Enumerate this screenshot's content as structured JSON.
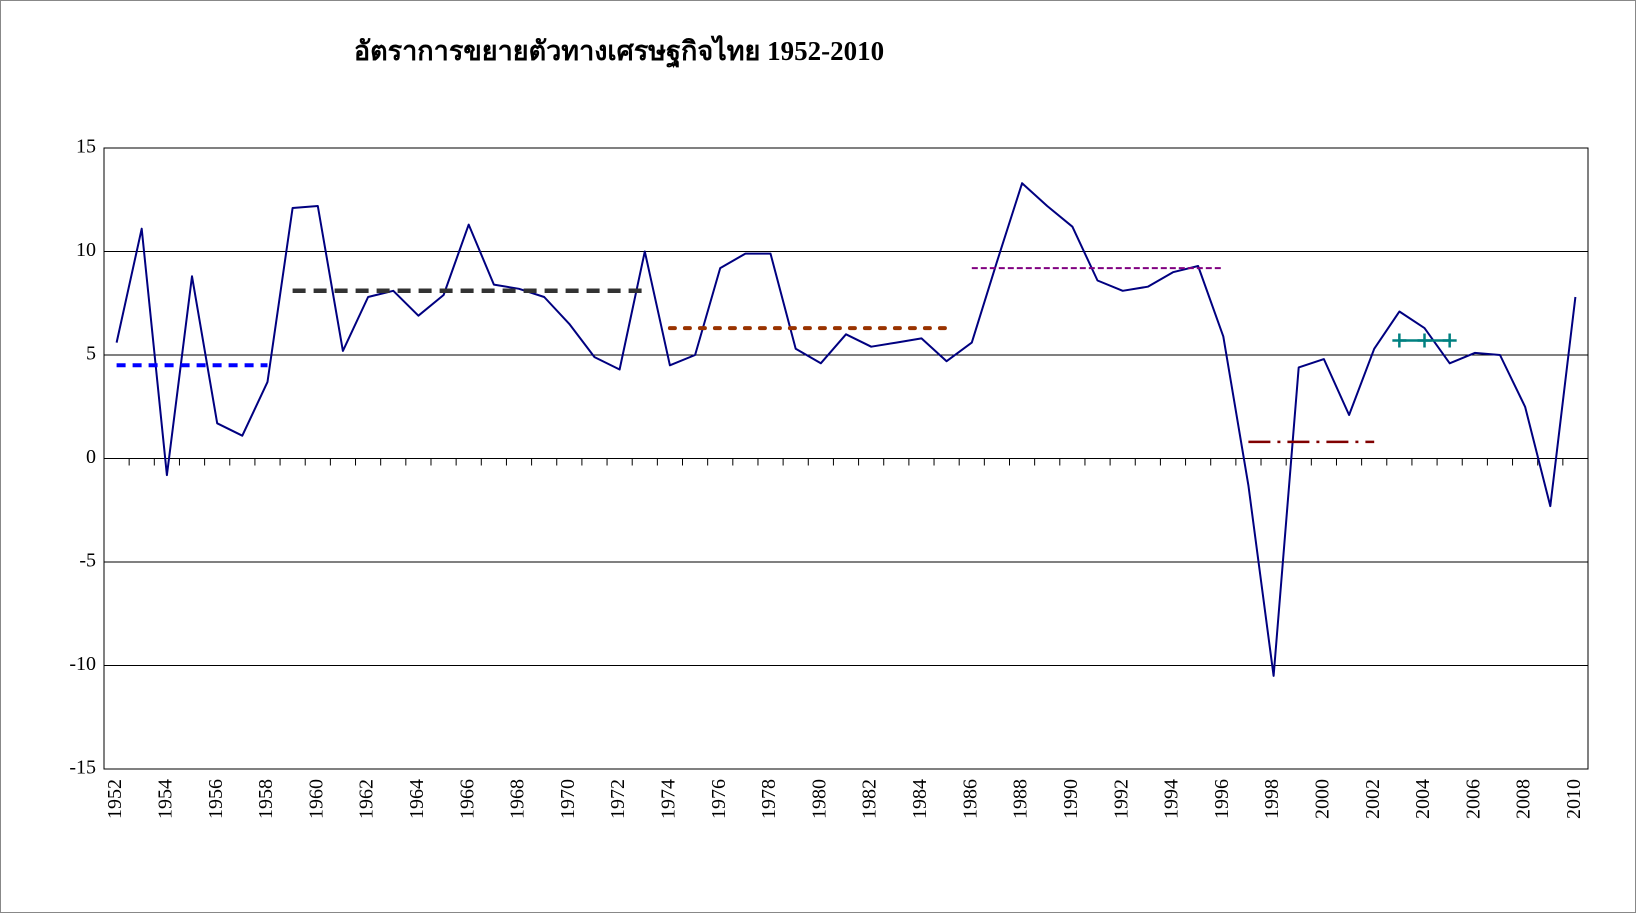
{
  "chart_data": {
    "type": "line",
    "title": "อัตราการขยายตัวทางเศรษฐกิจไทย 1952-2010",
    "categories": [
      "1952",
      null,
      "1954",
      null,
      "1956",
      null,
      "1958",
      null,
      "1960",
      null,
      "1962",
      null,
      "1964",
      null,
      "1966",
      null,
      "1968",
      null,
      "1970",
      null,
      "1972",
      null,
      "1974",
      null,
      "1976",
      null,
      "1978",
      null,
      "1980",
      null,
      "1982",
      null,
      "1984",
      null,
      "1986",
      null,
      "1988",
      null,
      "1990",
      null,
      "1992",
      null,
      "1994",
      null,
      "1996",
      null,
      "1998",
      null,
      "2000",
      null,
      "2002",
      null,
      "2004",
      null,
      "2006",
      null,
      "2008",
      null,
      "2010"
    ],
    "series": [
      {
        "color": "#000080",
        "values": [
          5.6,
          11.1,
          -0.8,
          8.8,
          1.7,
          1.1,
          3.7,
          12.1,
          12.2,
          5.2,
          7.8,
          8.1,
          6.9,
          7.9,
          11.3,
          8.4,
          8.2,
          7.8,
          6.5,
          4.9,
          4.3,
          10.0,
          4.5,
          5.0,
          9.2,
          9.9,
          9.9,
          5.3,
          4.6,
          6.0,
          5.4,
          5.6,
          5.8,
          4.7,
          5.6,
          9.5,
          13.3,
          12.2,
          11.2,
          8.6,
          8.1,
          8.3,
          9.0,
          9.3,
          5.9,
          -1.3,
          -10.5,
          4.4,
          4.8,
          2.1,
          5.3,
          7.1,
          6.3,
          4.6,
          5.1,
          5.0,
          2.5,
          -2.3,
          7.8
        ]
      },
      {
        "color": "#0000ff",
        "values": [
          4.5,
          4.5,
          4.5,
          4.5,
          4.5,
          4.5,
          4.5,
          null,
          null,
          null,
          null,
          null,
          null,
          null,
          null,
          null,
          null,
          null,
          null,
          null,
          null,
          null,
          null,
          null,
          null,
          null,
          null,
          null,
          null,
          null,
          null,
          null,
          null,
          null,
          null,
          null,
          null,
          null,
          null,
          null,
          null,
          null,
          null,
          null,
          null,
          null,
          null,
          null,
          null,
          null,
          null,
          null,
          null,
          null,
          null,
          null,
          null,
          null,
          null
        ]
      },
      {
        "color": "#333333",
        "values": [
          null,
          null,
          null,
          null,
          null,
          null,
          null,
          8.1,
          8.1,
          8.1,
          8.1,
          8.1,
          8.1,
          8.1,
          8.1,
          8.1,
          8.1,
          8.1,
          8.1,
          8.1,
          8.1,
          8.1,
          null,
          null,
          null,
          null,
          null,
          null,
          null,
          null,
          null,
          null,
          null,
          null,
          null,
          null,
          null,
          null,
          null,
          null,
          null,
          null,
          null,
          null,
          null,
          null,
          null,
          null,
          null,
          null,
          null,
          null,
          null,
          null,
          null,
          null,
          null,
          null,
          null
        ]
      },
      {
        "color": "#993300",
        "values": [
          null,
          null,
          null,
          null,
          null,
          null,
          null,
          null,
          null,
          null,
          null,
          null,
          null,
          null,
          null,
          null,
          null,
          null,
          null,
          null,
          null,
          null,
          6.3,
          6.3,
          6.3,
          6.3,
          6.3,
          6.3,
          6.3,
          6.3,
          6.3,
          6.3,
          6.3,
          6.3,
          null,
          null,
          null,
          null,
          null,
          null,
          null,
          null,
          null,
          null,
          null,
          null,
          null,
          null,
          null,
          null,
          null,
          null,
          null,
          null,
          null,
          null,
          null,
          null,
          null
        ]
      },
      {
        "color": "#800080",
        "values": [
          null,
          null,
          null,
          null,
          null,
          null,
          null,
          null,
          null,
          null,
          null,
          null,
          null,
          null,
          null,
          null,
          null,
          null,
          null,
          null,
          null,
          null,
          null,
          null,
          null,
          null,
          null,
          null,
          null,
          null,
          null,
          null,
          null,
          null,
          9.2,
          9.2,
          9.2,
          9.2,
          9.2,
          9.2,
          9.2,
          9.2,
          9.2,
          9.2,
          9.2,
          null,
          null,
          null,
          null,
          null,
          null,
          null,
          null,
          null,
          null,
          null,
          null,
          null,
          null
        ]
      },
      {
        "color": "#800000",
        "values": [
          null,
          null,
          null,
          null,
          null,
          null,
          null,
          null,
          null,
          null,
          null,
          null,
          null,
          null,
          null,
          null,
          null,
          null,
          null,
          null,
          null,
          null,
          null,
          null,
          null,
          null,
          null,
          null,
          null,
          null,
          null,
          null,
          null,
          null,
          null,
          null,
          null,
          null,
          null,
          null,
          null,
          null,
          null,
          null,
          null,
          0.8,
          0.8,
          0.8,
          0.8,
          0.8,
          0.8,
          null,
          null,
          null,
          null,
          null,
          null,
          null,
          null
        ]
      },
      {
        "color": "#008080",
        "values": [
          null,
          null,
          null,
          null,
          null,
          null,
          null,
          null,
          null,
          null,
          null,
          null,
          null,
          null,
          null,
          null,
          null,
          null,
          null,
          null,
          null,
          null,
          null,
          null,
          null,
          null,
          null,
          null,
          null,
          null,
          null,
          null,
          null,
          null,
          null,
          null,
          null,
          null,
          null,
          null,
          null,
          null,
          null,
          null,
          null,
          null,
          null,
          null,
          null,
          null,
          null,
          5.7,
          5.7,
          5.7,
          null,
          null,
          null,
          null,
          null
        ]
      }
    ],
    "ylim": [
      -15,
      15
    ],
    "yticks": [
      -15,
      -10,
      -5,
      0,
      5,
      10,
      15
    ],
    "grid": true
  }
}
